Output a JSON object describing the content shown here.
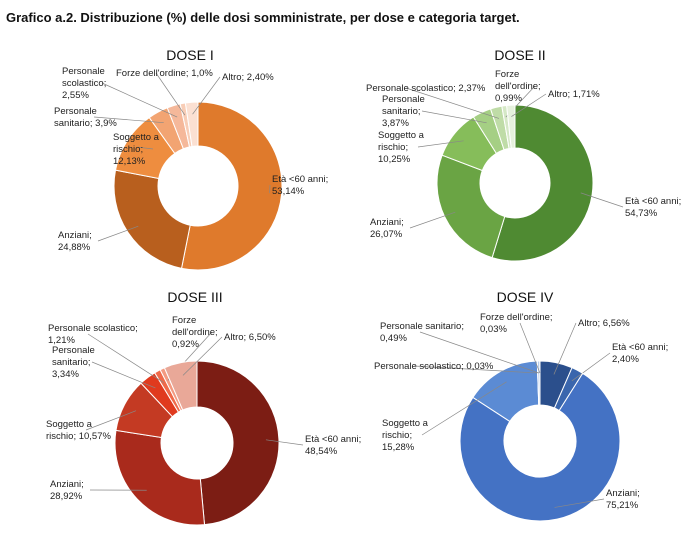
{
  "title": "Grafico a.2. Distribuzione (%) delle dosi somministrate, per dose e categoria target.",
  "chart_data": [
    {
      "type": "pie",
      "title": "DOSE I",
      "slices": [
        {
          "label": "Età <60 anni",
          "value": 53.14,
          "text": "Età <60 anni;|53,14%",
          "color": "#df7a2c"
        },
        {
          "label": "Anziani",
          "value": 24.88,
          "text": "Anziani;|24,88%",
          "color": "#b85f1e"
        },
        {
          "label": "Soggetto a rischio",
          "value": 12.13,
          "text": "Soggetto a|rischio;|12,13%",
          "color": "#ee8d3f"
        },
        {
          "label": "Personale sanitario",
          "value": 3.9,
          "text": "Personale|sanitario; 3,9%",
          "color": "#f2a472"
        },
        {
          "label": "Personale scolastico",
          "value": 2.55,
          "text": "Personale|scolastico;|2,55%",
          "color": "#f5b89a"
        },
        {
          "label": "Forze dell'ordine",
          "value": 1.0,
          "text": "Forze dell'ordine; 1,0%",
          "color": "#f8cdb6"
        },
        {
          "label": "Altro",
          "value": 2.4,
          "text": "Altro; 2,40%",
          "color": "#fbe0d2"
        }
      ]
    },
    {
      "type": "pie",
      "title": "DOSE II",
      "slices": [
        {
          "label": "Età <60 anni",
          "value": 54.73,
          "text": "Età <60 anni;|54,73%",
          "color": "#4f8a32"
        },
        {
          "label": "Anziani",
          "value": 26.07,
          "text": "Anziani;|26,07%",
          "color": "#6aa444"
        },
        {
          "label": "Soggetto a rischio",
          "value": 10.25,
          "text": "Soggetto a|rischio;|10,25%",
          "color": "#86bd5a"
        },
        {
          "label": "Personale sanitario",
          "value": 3.87,
          "text": "Personale|sanitario;|3,87%",
          "color": "#a5cf84"
        },
        {
          "label": "Personale scolastico",
          "value": 2.37,
          "text": "Personale scolastico; 2,37%",
          "color": "#bfdca7"
        },
        {
          "label": "Forze dell'ordine",
          "value": 0.99,
          "text": "Forze|dell'ordine;|0,99%",
          "color": "#d5e8c6"
        },
        {
          "label": "Altro",
          "value": 1.71,
          "text": "Altro; 1,71%",
          "color": "#e6f1dd"
        }
      ]
    },
    {
      "type": "pie",
      "title": "DOSE III",
      "slices": [
        {
          "label": "Età <60 anni",
          "value": 48.54,
          "text": "Età <60 anni;|48,54%",
          "color": "#7c1d14"
        },
        {
          "label": "Anziani",
          "value": 28.92,
          "text": "Anziani;|28,92%",
          "color": "#a92a1c"
        },
        {
          "label": "Soggetto a rischio",
          "value": 10.57,
          "text": "Soggetto a|rischio; 10,57%",
          "color": "#c43a23"
        },
        {
          "label": "Personale sanitario",
          "value": 3.34,
          "text": "Personale|sanitario;|3,34%",
          "color": "#e03a1e"
        },
        {
          "label": "Personale scolastico",
          "value": 1.21,
          "text": "Personale scolastico;|1,21%",
          "color": "#ef6a4a"
        },
        {
          "label": "Forze dell'ordine",
          "value": 0.92,
          "text": "Forze|dell'ordine;|0,92%",
          "color": "#f39a80"
        },
        {
          "label": "Altro",
          "value": 6.5,
          "text": "Altro; 6,50%",
          "color": "#e9a898"
        }
      ]
    },
    {
      "type": "pie",
      "title": "DOSE IV",
      "slices": [
        {
          "label": "Altro",
          "value": 6.56,
          "text": "Altro; 6,56%",
          "color": "#2b4f8c"
        },
        {
          "label": "Età <60 anni",
          "value": 2.4,
          "text": "Età <60 anni;|2,40%",
          "color": "#3a66ad"
        },
        {
          "label": "Anziani",
          "value": 75.21,
          "text": "Anziani;|75,21%",
          "color": "#4472c4"
        },
        {
          "label": "Soggetto a rischio",
          "value": 15.28,
          "text": "Soggetto a|rischio;|15,28%",
          "color": "#5b8bd4"
        },
        {
          "label": "Personale scolastico",
          "value": 0.03,
          "text": "Personale scolastico; 0,03%",
          "color": "#9db8e4"
        },
        {
          "label": "Personale sanitario",
          "value": 0.49,
          "text": "Personale sanitario;|0,49%",
          "color": "#b8cdec"
        },
        {
          "label": "Forze dell'ordine",
          "value": 0.03,
          "text": "Forze dell'ordine;|0,03%",
          "color": "#d4e0f4"
        }
      ]
    }
  ]
}
